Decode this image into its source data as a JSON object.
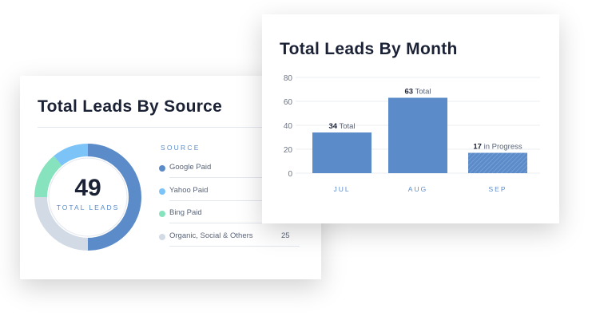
{
  "source_card": {
    "title": "Total Leads By Source",
    "total": "49",
    "total_label": "TOTAL LEADS",
    "source_header": "SOURCE",
    "items": [
      {
        "label": "Google Paid",
        "value": "",
        "color": "#5b8cc9",
        "share": 0.5
      },
      {
        "label": "Yahoo Paid",
        "value": "",
        "color": "#7cc4f8",
        "share": 0.11
      },
      {
        "label": "Bing Paid",
        "value": "",
        "color": "#86e3bd",
        "share": 0.14
      },
      {
        "label": "Organic, Social & Others",
        "value": "25",
        "color": "#d2dbe5",
        "share": 0.25
      }
    ]
  },
  "month_card": {
    "title": "Total Leads By Month"
  },
  "chart_data": {
    "type": "bar",
    "categories": [
      "JUL",
      "AUG",
      "SEP"
    ],
    "values": [
      34,
      63,
      17
    ],
    "labels": [
      {
        "num": "34",
        "text": " Total"
      },
      {
        "num": "63",
        "text": " Total"
      },
      {
        "num": "17",
        "text": " in Progress"
      }
    ],
    "hatched": [
      false,
      false,
      true
    ],
    "ylim": [
      0,
      80
    ],
    "yticks": [
      0,
      20,
      40,
      60,
      80
    ],
    "grid": true,
    "bar_color": "#5b8cc9"
  }
}
